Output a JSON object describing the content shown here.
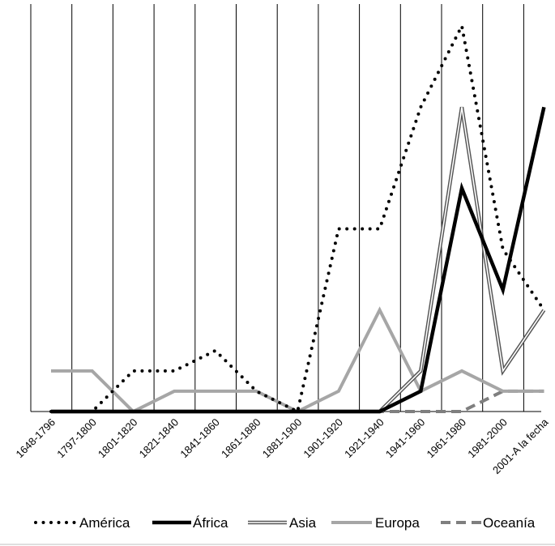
{
  "chart_data": {
    "type": "line",
    "categories": [
      "1648-1796",
      "1797-1800",
      "1801-1820",
      "1821-1840",
      "1841-1860",
      "1861-1880",
      "1881-1900",
      "1901-1920",
      "1921-1940",
      "1941-1960",
      "1961-1980",
      "1981-2000",
      "2001-A la fecha"
    ],
    "ylim": [
      0,
      19
    ],
    "grid": "vertical",
    "legend_position": "bottom",
    "series": [
      {
        "name": "América",
        "style": "dotted",
        "color": "#000000",
        "values": [
          0,
          0,
          2,
          2,
          3,
          1,
          0,
          9,
          9,
          15,
          19,
          8,
          5
        ]
      },
      {
        "name": "África",
        "style": "solid-thick",
        "color": "#000000",
        "values": [
          0,
          0,
          0,
          0,
          0,
          0,
          0,
          0,
          0,
          1,
          11,
          6,
          15
        ]
      },
      {
        "name": "Asia",
        "style": "double",
        "color": "#555555",
        "values": [
          0,
          0,
          0,
          0,
          0,
          0,
          0,
          0,
          0,
          2,
          15,
          2,
          5
        ]
      },
      {
        "name": "Europa",
        "style": "solid",
        "color": "#a6a6a6",
        "values": [
          2,
          2,
          0,
          1,
          1,
          1,
          0,
          1,
          5,
          1,
          2,
          1,
          1
        ]
      },
      {
        "name": "Oceanía",
        "style": "dashed",
        "color": "#7f7f7f",
        "values": [
          0,
          0,
          0,
          0,
          0,
          0,
          0,
          0,
          0,
          0,
          0,
          1,
          1
        ]
      }
    ]
  }
}
